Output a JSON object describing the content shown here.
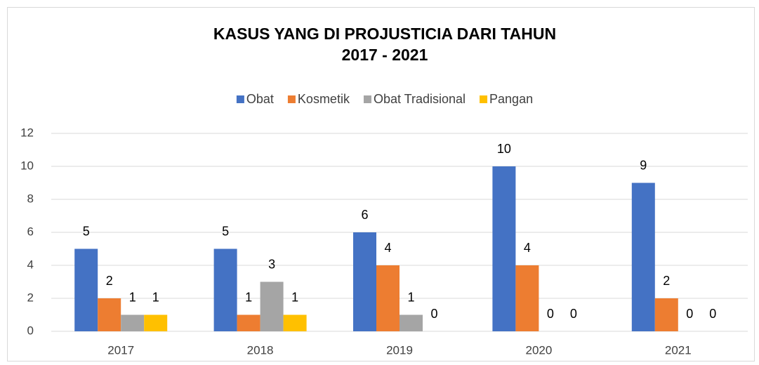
{
  "chart_data": {
    "type": "bar",
    "title": [
      "KASUS YANG DI PROJUSTICIA DARI TAHUN",
      "2017 - 2021"
    ],
    "categories": [
      "2017",
      "2018",
      "2019",
      "2020",
      "2021"
    ],
    "series": [
      {
        "name": "Obat",
        "color": "#4472c4",
        "values": [
          5,
          5,
          6,
          10,
          9
        ]
      },
      {
        "name": "Kosmetik",
        "color": "#ed7d31",
        "values": [
          2,
          1,
          4,
          4,
          2
        ]
      },
      {
        "name": "Obat Tradisional",
        "color": "#a5a5a5",
        "values": [
          1,
          3,
          1,
          0,
          0
        ]
      },
      {
        "name": "Pangan",
        "color": "#ffc000",
        "values": [
          1,
          1,
          0,
          0,
          0
        ]
      }
    ],
    "ylim": [
      0,
      12
    ],
    "yticks": [
      0,
      2,
      4,
      6,
      8,
      10,
      12
    ],
    "grid": true,
    "legend": "top",
    "data_labels": true
  }
}
